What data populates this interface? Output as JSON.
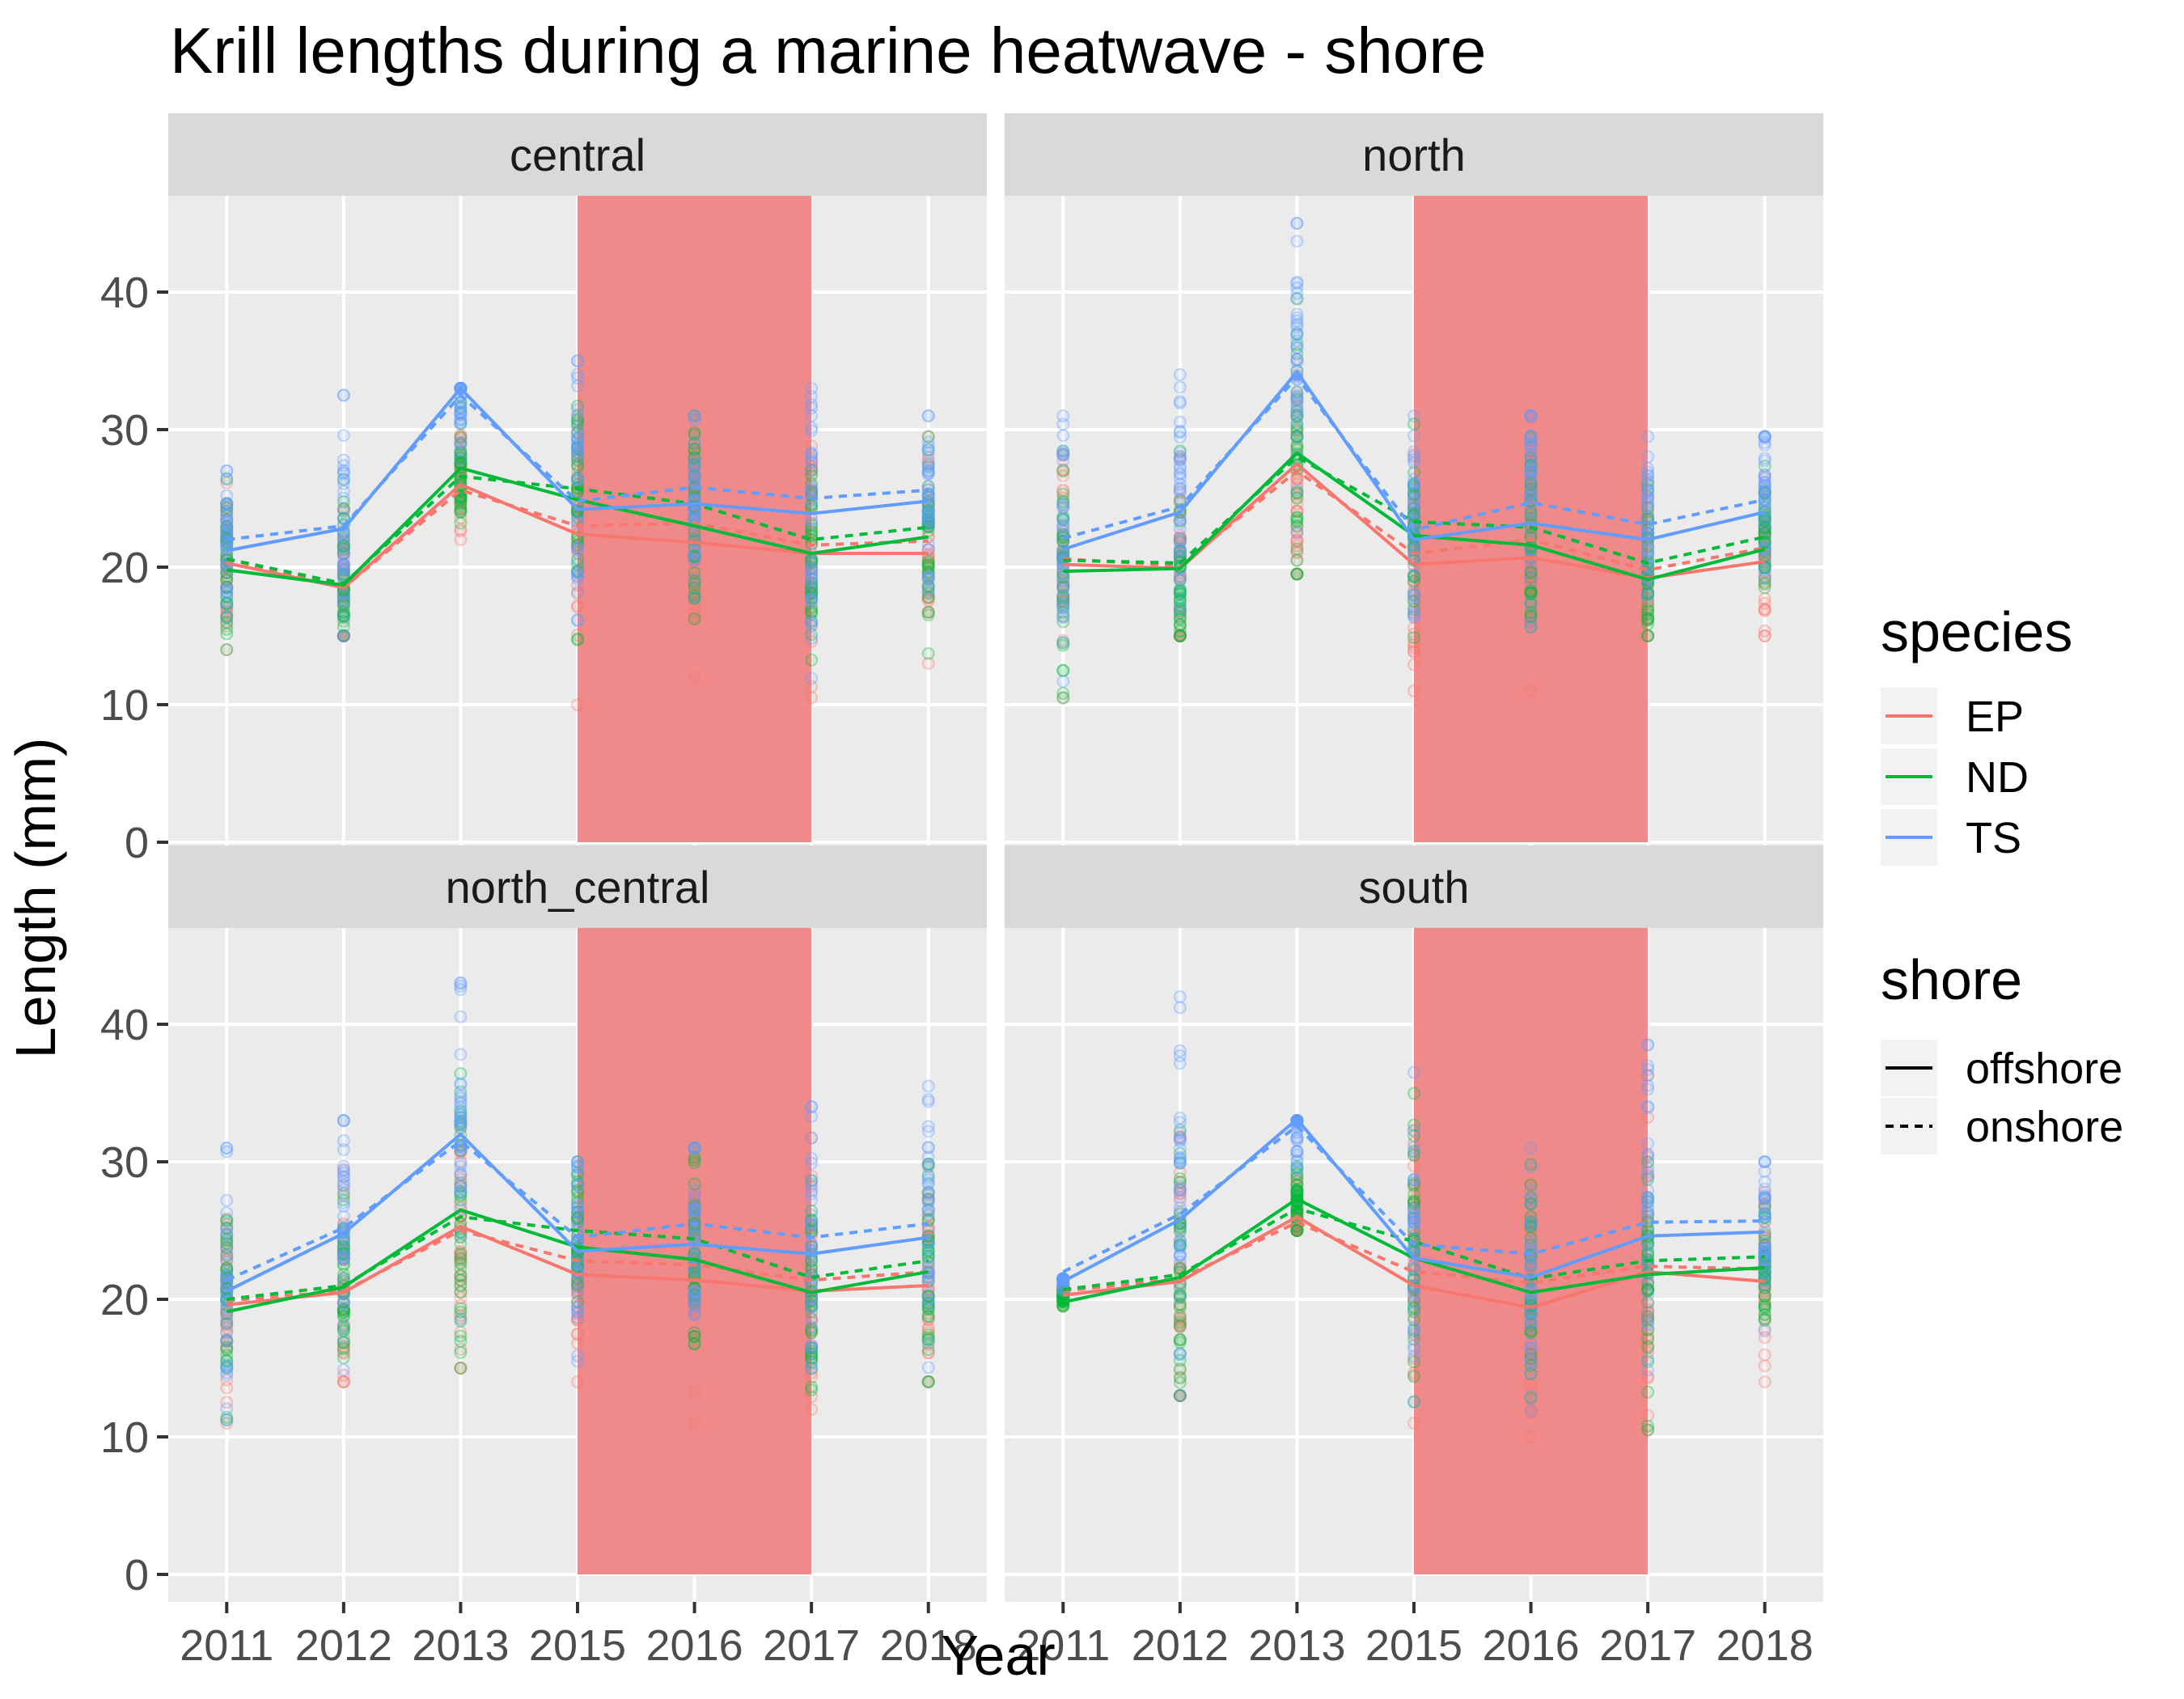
{
  "chart_data": {
    "type": "line",
    "title": "Krill lengths during a marine heatwave - shore",
    "xlabel": "Year",
    "ylabel": "Length (mm)",
    "x_categories": [
      "2011",
      "2012",
      "2013",
      "2015",
      "2016",
      "2017",
      "2018"
    ],
    "ylim": [
      -2,
      47
    ],
    "y_ticks": [
      0,
      10,
      20,
      30,
      40
    ],
    "grid": true,
    "heatwave_band": {
      "from": "2015",
      "to": "2017",
      "color": "#f08080"
    },
    "species_legend": {
      "title": "species",
      "placement": "right",
      "entries": [
        {
          "name": "EP",
          "color": "#F8766D"
        },
        {
          "name": "ND",
          "color": "#00BA38"
        },
        {
          "name": "TS",
          "color": "#619CFF"
        }
      ]
    },
    "shore_legend": {
      "title": "shore",
      "placement": "right",
      "entries": [
        {
          "name": "offshore",
          "linetype": "solid"
        },
        {
          "name": "onshore",
          "linetype": "dashed"
        }
      ]
    },
    "facets": [
      {
        "name": "central",
        "series": [
          {
            "species": "EP",
            "shore": "offshore",
            "y": [
              20.3,
              18.5,
              26.0,
              22.4,
              21.8,
              21.0,
              21.0
            ]
          },
          {
            "species": "EP",
            "shore": "onshore",
            "y": [
              20.6,
              18.5,
              25.6,
              23.0,
              23.2,
              21.6,
              21.9
            ]
          },
          {
            "species": "ND",
            "shore": "offshore",
            "y": [
              19.8,
              18.7,
              27.2,
              24.9,
              23.0,
              21.0,
              22.2
            ]
          },
          {
            "species": "ND",
            "shore": "onshore",
            "y": [
              20.6,
              18.8,
              26.6,
              25.7,
              24.6,
              22.0,
              22.9
            ]
          },
          {
            "species": "TS",
            "shore": "offshore",
            "y": [
              21.2,
              22.8,
              33.0,
              24.2,
              24.6,
              23.9,
              24.8
            ]
          },
          {
            "species": "TS",
            "shore": "onshore",
            "y": [
              22.0,
              23.0,
              32.5,
              24.8,
              25.8,
              25.0,
              25.6
            ]
          }
        ],
        "point_ranges": [
          [
            14,
            27
          ],
          [
            15,
            32.5
          ],
          [
            22,
            33
          ],
          [
            10,
            35
          ],
          [
            12,
            31
          ],
          [
            10.5,
            33
          ],
          [
            13,
            31
          ]
        ]
      },
      {
        "name": "north",
        "series": [
          {
            "species": "EP",
            "shore": "offshore",
            "y": [
              20.2,
              19.9,
              27.5,
              20.2,
              20.7,
              19.2,
              20.4
            ]
          },
          {
            "species": "EP",
            "shore": "onshore",
            "y": [
              20.6,
              20.1,
              27.0,
              21.0,
              22.0,
              19.8,
              21.4
            ]
          },
          {
            "species": "ND",
            "shore": "offshore",
            "y": [
              19.7,
              19.9,
              28.3,
              22.3,
              21.6,
              19.1,
              21.3
            ]
          },
          {
            "species": "ND",
            "shore": "onshore",
            "y": [
              20.5,
              20.3,
              28.0,
              23.3,
              22.9,
              20.3,
              22.2
            ]
          },
          {
            "species": "TS",
            "shore": "offshore",
            "y": [
              21.3,
              24.0,
              34.2,
              22.0,
              23.2,
              22.0,
              24.0
            ]
          },
          {
            "species": "TS",
            "shore": "onshore",
            "y": [
              22.1,
              24.4,
              33.8,
              22.7,
              24.7,
              23.1,
              24.9
            ]
          }
        ],
        "point_ranges": [
          [
            10.5,
            31
          ],
          [
            15,
            34
          ],
          [
            19.5,
            45
          ],
          [
            11,
            31
          ],
          [
            11,
            31
          ],
          [
            15,
            29.5
          ],
          [
            15,
            29.5
          ]
        ]
      },
      {
        "name": "north_central",
        "series": [
          {
            "species": "EP",
            "shore": "offshore",
            "y": [
              19.6,
              20.5,
              25.3,
              21.8,
              21.4,
              20.6,
              21.0
            ]
          },
          {
            "species": "EP",
            "shore": "onshore",
            "y": [
              19.9,
              20.6,
              25.0,
              22.8,
              22.5,
              21.4,
              22.0
            ]
          },
          {
            "species": "ND",
            "shore": "offshore",
            "y": [
              19.1,
              20.9,
              26.5,
              23.8,
              22.9,
              20.5,
              22.0
            ]
          },
          {
            "species": "ND",
            "shore": "onshore",
            "y": [
              20.0,
              21.0,
              26.0,
              25.0,
              24.4,
              21.6,
              22.8
            ]
          },
          {
            "species": "TS",
            "shore": "offshore",
            "y": [
              20.6,
              24.8,
              32.0,
              23.5,
              24.0,
              23.3,
              24.5
            ]
          },
          {
            "species": "TS",
            "shore": "onshore",
            "y": [
              21.4,
              25.2,
              31.5,
              24.5,
              25.5,
              24.5,
              25.5
            ]
          }
        ],
        "point_ranges": [
          [
            11,
            31
          ],
          [
            14,
            33
          ],
          [
            15,
            43
          ],
          [
            14,
            30
          ],
          [
            11,
            31
          ],
          [
            12,
            34
          ],
          [
            14,
            35.5
          ]
        ]
      },
      {
        "name": "south",
        "series": [
          {
            "species": "EP",
            "shore": "offshore",
            "y": [
              20.3,
              21.3,
              26.0,
              21.0,
              19.4,
              22.0,
              21.3
            ]
          },
          {
            "species": "EP",
            "shore": "onshore",
            "y": [
              20.6,
              21.5,
              25.6,
              22.0,
              21.2,
              22.4,
              22.2
            ]
          },
          {
            "species": "ND",
            "shore": "offshore",
            "y": [
              19.8,
              21.6,
              27.3,
              23.0,
              20.5,
              21.8,
              22.3
            ]
          },
          {
            "species": "ND",
            "shore": "onshore",
            "y": [
              20.7,
              21.8,
              26.6,
              24.2,
              21.5,
              22.8,
              23.1
            ]
          },
          {
            "species": "TS",
            "shore": "offshore",
            "y": [
              21.3,
              25.8,
              33.1,
              23.0,
              21.6,
              24.6,
              24.9
            ]
          },
          {
            "species": "TS",
            "shore": "onshore",
            "y": [
              22.0,
              26.2,
              32.6,
              24.0,
              23.3,
              25.6,
              25.7
            ]
          }
        ],
        "point_ranges": [
          [
            19.5,
            21.5
          ],
          [
            13,
            42
          ],
          [
            25,
            33
          ],
          [
            11,
            36.5
          ],
          [
            10,
            31
          ],
          [
            10.5,
            38.5
          ],
          [
            14,
            30
          ]
        ]
      }
    ]
  }
}
